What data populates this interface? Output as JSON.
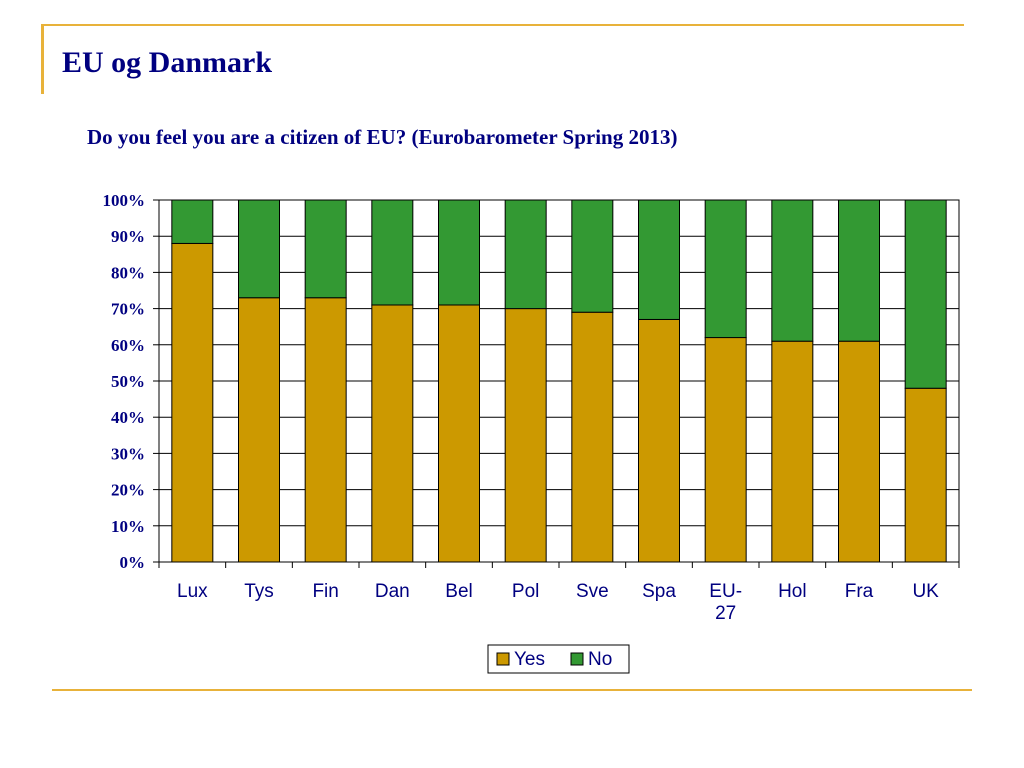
{
  "slide": {
    "title": "EU og Danmark"
  },
  "colors": {
    "accent_line": "#e8b23a",
    "text": "#000080",
    "yes": "#cc9900",
    "no": "#339933"
  },
  "chart_data": {
    "type": "bar",
    "stacked": true,
    "title": "Do you feel you are a citizen of EU? (Eurobarometer Spring 2013)",
    "categories": [
      "Lux",
      "Tys",
      "Fin",
      "Dan",
      "Bel",
      "Pol",
      "Sve",
      "Spa",
      "EU-27",
      "Hol",
      "Fra",
      "UK"
    ],
    "series": [
      {
        "name": "Yes",
        "color": "#cc9900",
        "values": [
          88,
          73,
          73,
          71,
          71,
          70,
          69,
          67,
          62,
          61,
          61,
          48
        ]
      },
      {
        "name": "No",
        "color": "#339933",
        "values": [
          12,
          27,
          27,
          29,
          29,
          30,
          31,
          33,
          38,
          39,
          39,
          52
        ]
      }
    ],
    "yticks": [
      "0%",
      "10%",
      "20%",
      "30%",
      "40%",
      "50%",
      "60%",
      "70%",
      "80%",
      "90%",
      "100%"
    ],
    "ylim": [
      0,
      100
    ],
    "grid": true,
    "legend": "bottom"
  }
}
